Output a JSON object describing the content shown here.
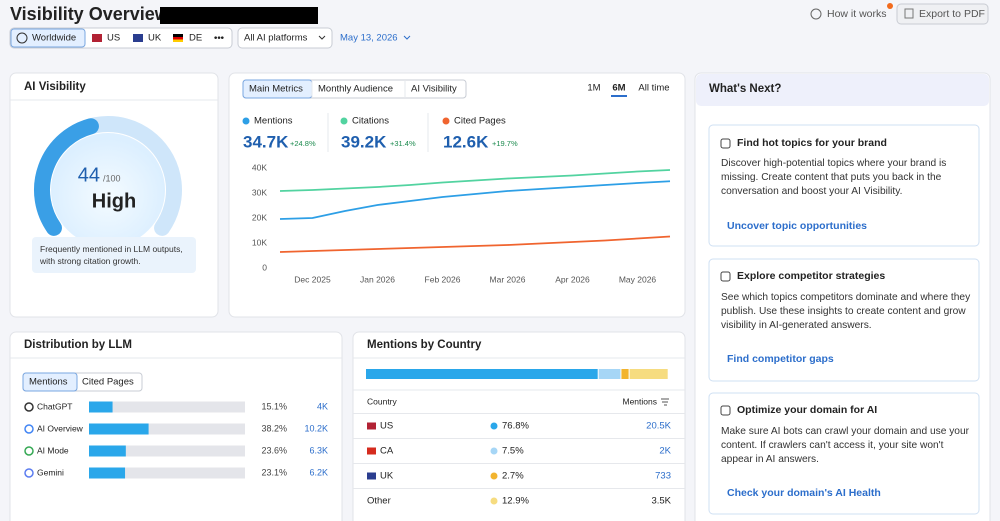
{
  "header": {
    "title": "Visibility Overview:",
    "help": "How it works",
    "export": "Export to PDF"
  },
  "filters": {
    "regions": [
      "Worldwide",
      "US",
      "UK",
      "DE"
    ],
    "more": "•••",
    "platform": "All AI platforms",
    "date": "May 13, 2026"
  },
  "ai_visibility": {
    "title": "AI Visibility",
    "score": 44,
    "score_max": "/100",
    "gauge_lim": [
      0,
      100
    ],
    "level": "High",
    "note": "Frequently mentioned in LLM outputs, with strong citation growth."
  },
  "metrics": {
    "tabs": [
      "Main Metrics",
      "Monthly Audience",
      "AI Visibility"
    ],
    "ranges": [
      "1M",
      "6M",
      "All time"
    ],
    "kpis": [
      {
        "value": "34.7K",
        "change": "+24.8%"
      },
      {
        "value": "39.2K",
        "change": "+31.4%"
      },
      {
        "value": "12.6K",
        "change": "+19.7%"
      }
    ]
  },
  "chart_data": [
    {
      "type": "line",
      "categories": [
        null,
        "Dec 2025",
        null,
        "Jan 2026",
        null,
        "Feb 2026",
        null,
        "Mar 2026",
        null,
        "Apr 2026",
        null,
        "May 2026",
        null
      ],
      "series": [
        {
          "name": "Mentions",
          "color": "#2d9fe6",
          "values": [
            19600,
            20000,
            22800,
            25200,
            26800,
            28400,
            29600,
            30800,
            31600,
            32400,
            33200,
            34000,
            34700
          ]
        },
        {
          "name": "Citations",
          "color": "#52d3a0",
          "values": [
            30800,
            31200,
            31800,
            32400,
            33200,
            34200,
            35000,
            35800,
            36400,
            37000,
            37800,
            38600,
            39200
          ]
        },
        {
          "name": "Cited Pages",
          "color": "#f0642f",
          "values": [
            6400,
            6800,
            7200,
            7600,
            8000,
            8400,
            8800,
            9200,
            9800,
            10400,
            11000,
            11800,
            12600
          ]
        }
      ],
      "ylim": [
        0,
        40000
      ],
      "yticks": [
        0,
        {
          "value": 10000,
          "label": "10K"
        },
        {
          "value": 20000,
          "label": "20K"
        },
        {
          "value": 30000,
          "label": "30K"
        },
        {
          "value": 40000,
          "label": "40K"
        }
      ],
      "grid": false
    },
    {
      "type": "bar",
      "orientation": "horizontal",
      "title": "Distribution by LLM",
      "tabs": [
        "Mentions",
        "Cited Pages"
      ],
      "categories": [
        "ChatGPT",
        "AI Overview",
        "AI Mode",
        "Gemini"
      ],
      "values": [
        15.1,
        38.2,
        23.6,
        23.1
      ],
      "value_labels": [
        "15.1%",
        "38.2%",
        "23.6%",
        "23.1%"
      ],
      "counts": [
        "4K",
        "10.2K",
        "6.3K",
        "6.2K"
      ],
      "color": "#2aa7ea",
      "xlim": [
        0,
        100
      ]
    },
    {
      "type": "stacked_bar",
      "title": "Mentions by Country",
      "columns": [
        "Country",
        "Mentions"
      ],
      "categories": [
        "US",
        "CA",
        "UK",
        "Other"
      ],
      "values": [
        76.8,
        7.5,
        2.7,
        12.9
      ],
      "value_labels": [
        "76.8%",
        "7.5%",
        "2.7%",
        "12.9%"
      ],
      "counts": [
        "20.5K",
        "2K",
        "733",
        "3.5K"
      ],
      "colors": [
        "#2aa7ea",
        "#a6d6f6",
        "#f2b42f",
        "#f6dc80"
      ],
      "xlim": [
        0,
        100
      ]
    }
  ],
  "whats_next": {
    "title": "What's Next?",
    "cards": [
      {
        "title": "Find hot topics for your brand",
        "text": "Discover high-potential topics where your brand is missing. Create content that puts you back in the conversation and boost your AI Visibility.",
        "link": "Uncover topic opportunities"
      },
      {
        "title": "Explore competitor strategies",
        "text": "See which topics competitors dominate and where they publish. Use these insights to create content and grow visibility in AI-generated answers.",
        "link": "Find competitor gaps"
      },
      {
        "title": "Optimize your domain for AI",
        "text": "Make sure AI bots can crawl your domain and use your content. If crawlers can't access it, your site won't appear in AI answers.",
        "link": "Check your domain's AI Health"
      }
    ]
  }
}
